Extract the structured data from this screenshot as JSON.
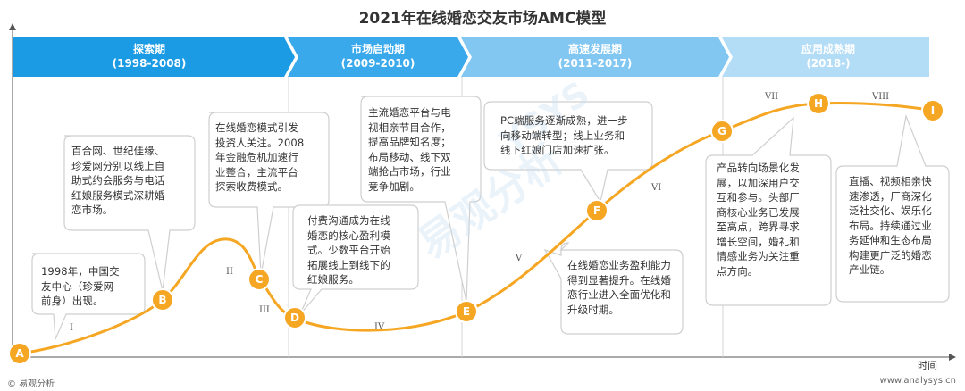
{
  "title": "2021年在线婚恋交友市场AMC模型",
  "phases": [
    {
      "name": "探索期",
      "years": "(1998-2008)"
    },
    {
      "name": "市场启动期",
      "years": "(2009-2010)"
    },
    {
      "name": "高速发展期",
      "years": "(2011-2017)"
    },
    {
      "name": "应用成熟期",
      "years": "(2018-)"
    }
  ],
  "colors": {
    "phase1": "#1a9be4",
    "phase2": "#3aa9ec",
    "phase3": "#82c6f2",
    "phase4": "#b3dcf7",
    "curve": "#f5a623",
    "node": "#f5a623",
    "bubble_border": "#cfcfcf"
  },
  "chart_data": {
    "type": "line",
    "xlabel": "时间",
    "nodes": [
      "A",
      "B",
      "C",
      "D",
      "E",
      "F",
      "G",
      "H",
      "I"
    ],
    "stages": [
      "I",
      "II",
      "III",
      "IV",
      "V",
      "VI",
      "VII",
      "VIII"
    ],
    "annotations": [
      "1998年，中国交\n友中心（珍爱网\n前身）出现。",
      "百合网、世纪佳缘、\n珍爱网分别以线上自\n助式约会服务与电话\n红娘服务模式深耕婚\n恋市场。",
      "在线婚恋模式引发\n投资人关注。2008\n年金融危机加速行\n业整合，主流平台\n探索收费模式。",
      "付费沟通成为在线\n婚恋的核心盈利模\n式。少数平台开始\n拓展线上到线下的\n红娘服务。",
      "主流婚恋平台与电\n视相亲节目合作，\n提高品牌知名度；\n布局移动、线下双\n端抢占市场，行业\n竞争加剧。",
      "PC端服务逐渐成熟，进一步\n向移动端转型；线上业务和\n线下红娘门店加速扩张。",
      "在线婚恋业务盈利能力\n得到显著提升。在线婚\n恋行业进入全面优化和\n升级时期。",
      "产品转向场景化发\n展，以加深用户交\n互和参与。头部厂\n商核心业务已发展\n至高点，跨界寻求\n增长空间，婚礼和\n情感业务为关注重\n点方向。",
      "直播、视频相亲快\n速渗透，厂商深化\n泛社交化、娱乐化\n布局。持续通过业\n务延伸和生态布局\n构建更广泛的婚恋\n产业链。"
    ]
  },
  "watermark": "易观分析",
  "watermark_en": "YSYS",
  "footer": {
    "source": "© 易观分析",
    "site": "www.analysys.cn"
  }
}
